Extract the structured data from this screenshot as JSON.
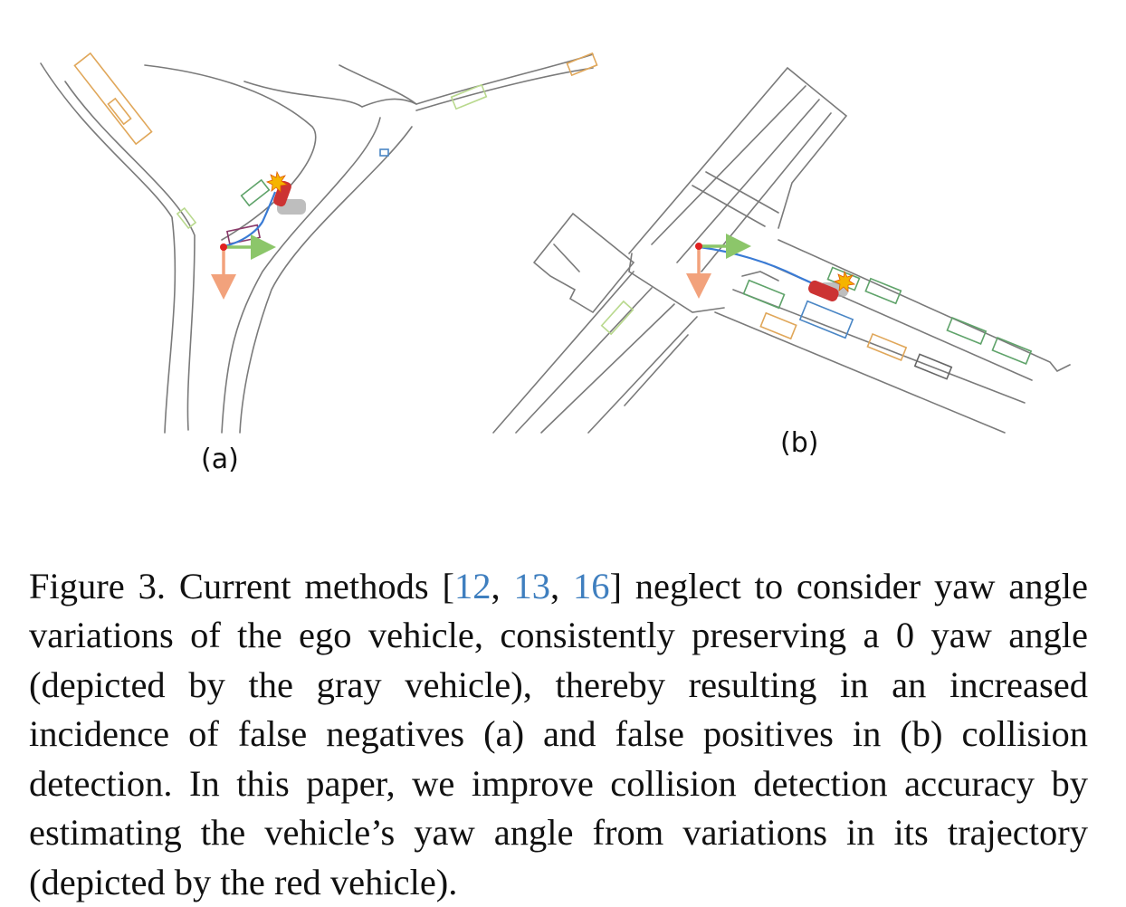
{
  "figure": {
    "panel_a_label": "(a)",
    "panel_b_label": "(b)",
    "colors": {
      "road": "#7a7a7a",
      "ego_marker": "#e02020",
      "yaw_axis_x": "#8cc66a",
      "yaw_axis_y": "#f2a27c",
      "trajectory": "#3a7bd5",
      "trajectory_end": "#35c3f0",
      "red_vehicle": "#cc3333",
      "gray_vehicle": "#a8a8a8",
      "collision_burst": "#f5b400",
      "box_green": "#5fa36a",
      "box_light_green": "#b9d98e",
      "box_orange": "#e0a75a",
      "box_blue": "#4a86c5",
      "box_purple": "#8a3a6a",
      "box_gray": "#666666"
    }
  },
  "caption": {
    "prefix": "Figure 3. Current methods [",
    "cite1": "12",
    "sep1": ", ",
    "cite2": "13",
    "sep2": ", ",
    "cite3": "16",
    "suffix": "] neglect to consider yaw angle variations of the ego vehicle, consistently preserving a 0 yaw angle (depicted by the gray vehicle), thereby resulting in an increased incidence of false negatives (a) and false positives in (b) collision detection. In this paper, we improve collision detection accuracy by estimating the vehicle’s yaw angle from variations in its trajectory (depicted by the red vehicle)."
  }
}
